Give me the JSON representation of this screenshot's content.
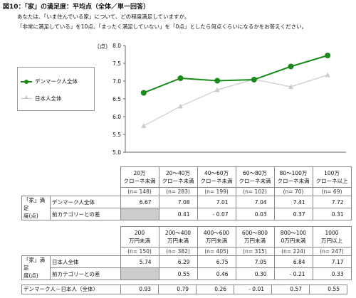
{
  "title": "図10：「家」の満足度：平均点（全体／単一回答）",
  "question_line1": "あなたは、「いま住んでいる家」について、どの程度満足していますか。",
  "question_line2": "「非常に満足している」を10点、「まったく満足していない」を「0点」としたら何点くらいになるかをお答えください。",
  "chart_data": {
    "type": "line",
    "ylabel": "（点）",
    "ylim": [
      5.0,
      8.0
    ],
    "yticks": [
      "5.0",
      "5.5",
      "6.0",
      "6.5",
      "7.0",
      "7.5",
      "8.0"
    ],
    "series": [
      {
        "name": "デンマーク人全体",
        "color": "#1a8a1a",
        "values": [
          6.67,
          7.08,
          7.01,
          7.04,
          7.41,
          7.72
        ]
      },
      {
        "name": "日本人全体",
        "color": "#cccccc",
        "values": [
          5.74,
          6.29,
          6.75,
          7.05,
          6.84,
          7.17
        ]
      }
    ]
  },
  "table1": {
    "headers": [
      [
        "20万",
        "クローネ未満"
      ],
      [
        "20～40万",
        "クローネ未満"
      ],
      [
        "40～60万",
        "クローネ未満"
      ],
      [
        "60～80万",
        "クローネ未満"
      ],
      [
        "80～100万",
        "クローネ未満"
      ],
      [
        "100万",
        "クローネ以上"
      ]
    ],
    "n": [
      "(n= 148)",
      "(n= 283)",
      "(n= 199)",
      "(n= 102)",
      "(n= 70)",
      "(n= 69)"
    ],
    "row_label": [
      "「家」満足",
      "度(点)"
    ],
    "row1_label": "デンマーク人全体",
    "row1": [
      "6.67",
      "7.08",
      "7.01",
      "7.04",
      "7.41",
      "7.72"
    ],
    "row2_label": "前カテゴリーとの差",
    "row2": [
      "",
      "0.41",
      "- 0.07",
      "0.03",
      "0.37",
      "0.31"
    ]
  },
  "table2": {
    "headers": [
      [
        "200",
        "万円未満"
      ],
      [
        "200～400",
        "万円未満"
      ],
      [
        "400～600",
        "万円未満"
      ],
      [
        "600～800",
        "万円未満"
      ],
      [
        "800～100",
        "0万円未満"
      ],
      [
        "1000",
        "万円以上"
      ]
    ],
    "n": [
      "(n= 150)",
      "(n= 382)",
      "(n= 405)",
      "(n= 315)",
      "(n= 224)",
      "(n= 247)"
    ],
    "row_label": [
      "「家」満足",
      "度(点)"
    ],
    "row1_label": "日本人全体",
    "row1": [
      "5.74",
      "6.29",
      "6.75",
      "7.05",
      "6.84",
      "7.17"
    ],
    "row2_label": "前カテゴリーとの差",
    "row2": [
      "",
      "0.55",
      "0.46",
      "0.30",
      "- 0.21",
      "0.33"
    ]
  },
  "table3": {
    "label": "デンマーク人－日本人（全体）",
    "values": [
      "0.93",
      "0.79",
      "0.26",
      "- 0.01",
      "0.57",
      "0.55"
    ]
  }
}
